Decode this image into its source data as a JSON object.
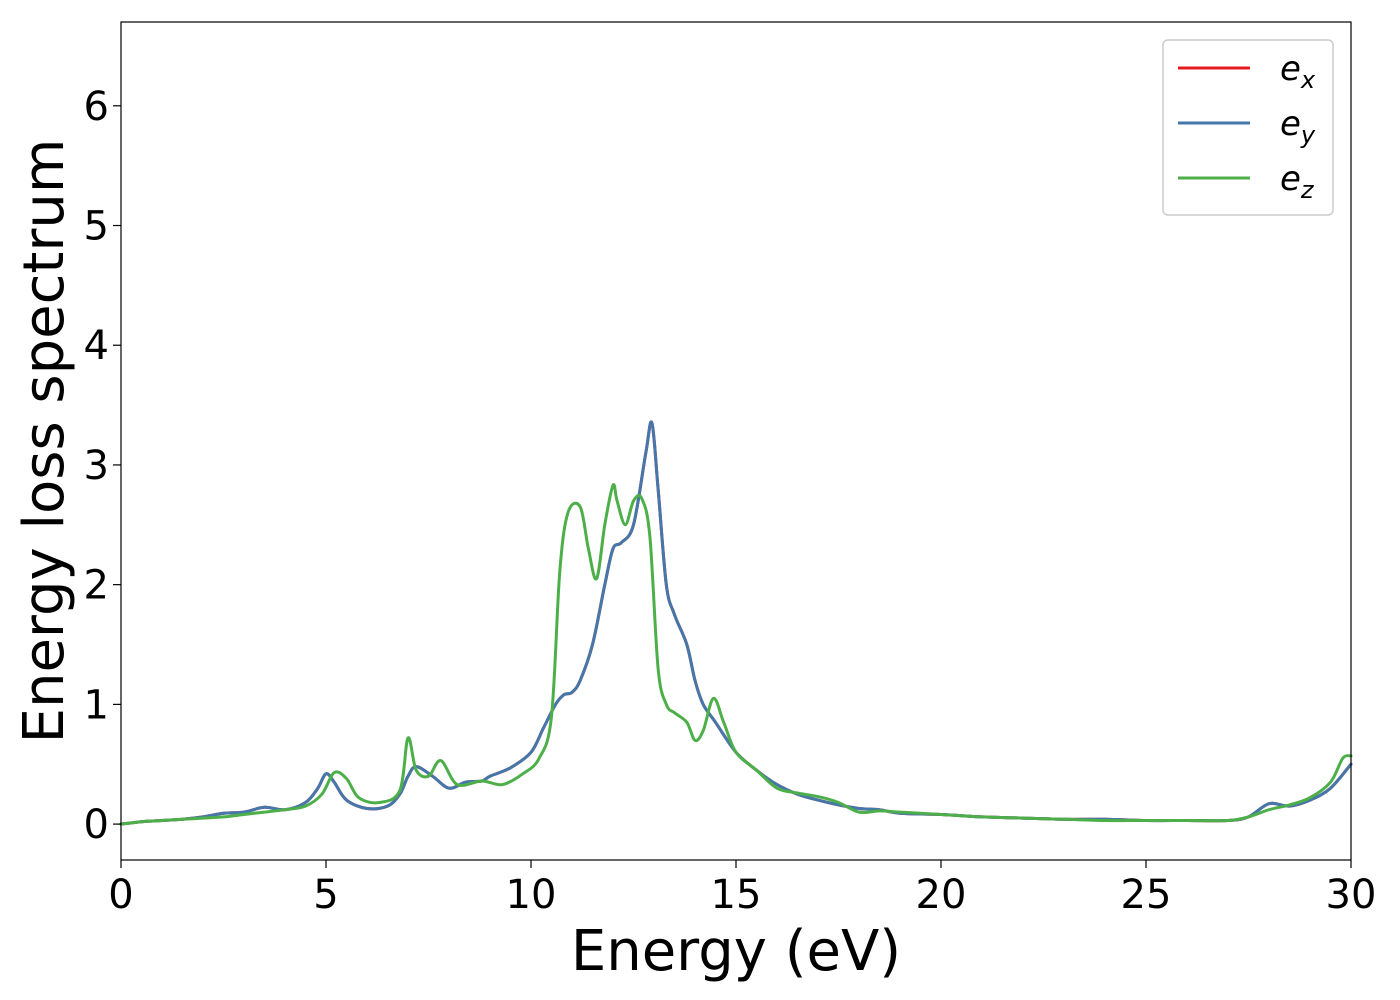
{
  "chart_data": {
    "type": "line",
    "title": "",
    "xlabel": "Energy (eV)",
    "ylabel": "Energy loss spectrum",
    "xlim": [
      0,
      30
    ],
    "ylim": [
      -0.3,
      6.7
    ],
    "xticks": [
      0,
      5,
      10,
      15,
      20,
      25,
      30
    ],
    "yticks": [
      0,
      1,
      2,
      3,
      4,
      5,
      6
    ],
    "grid": false,
    "legend_position": "top-right",
    "series": [
      {
        "name": "e_x",
        "label_base": "e",
        "label_sub": "x",
        "color": "#e41a1c",
        "x": [
          0,
          0.5,
          1,
          1.5,
          2,
          2.5,
          3,
          3.5,
          4,
          4.5,
          4.8,
          5,
          5.2,
          5.5,
          6,
          6.5,
          6.8,
          7,
          7.2,
          7.6,
          8,
          8.4,
          8.8,
          9,
          9.5,
          10,
          10.3,
          10.6,
          10.8,
          11,
          11.2,
          11.5,
          11.8,
          12,
          12.2,
          12.5,
          12.8,
          12.95,
          13.1,
          13.3,
          13.5,
          13.8,
          14,
          14.2,
          14.5,
          15,
          15.5,
          16,
          16.5,
          17,
          17.5,
          18,
          18.5,
          19,
          20,
          20.5,
          21,
          22,
          23,
          24,
          25,
          26,
          27,
          27.5,
          28,
          28.5,
          29,
          29.5,
          30
        ],
        "values": [
          0,
          0.02,
          0.03,
          0.04,
          0.06,
          0.09,
          0.1,
          0.14,
          0.12,
          0.18,
          0.3,
          0.42,
          0.35,
          0.2,
          0.13,
          0.15,
          0.25,
          0.4,
          0.48,
          0.4,
          0.3,
          0.35,
          0.36,
          0.4,
          0.47,
          0.6,
          0.8,
          1.0,
          1.08,
          1.1,
          1.2,
          1.5,
          2.0,
          2.3,
          2.35,
          2.5,
          3.1,
          3.35,
          2.8,
          2.0,
          1.75,
          1.5,
          1.2,
          1.0,
          0.85,
          0.6,
          0.45,
          0.33,
          0.25,
          0.2,
          0.16,
          0.13,
          0.12,
          0.09,
          0.08,
          0.07,
          0.06,
          0.05,
          0.04,
          0.04,
          0.03,
          0.03,
          0.03,
          0.06,
          0.17,
          0.15,
          0.2,
          0.3,
          0.5
        ]
      },
      {
        "name": "e_y",
        "label_base": "e",
        "label_sub": "y",
        "color": "#4477aa",
        "x": [
          0,
          0.5,
          1,
          1.5,
          2,
          2.5,
          3,
          3.5,
          4,
          4.5,
          4.8,
          5,
          5.2,
          5.5,
          6,
          6.5,
          6.8,
          7,
          7.2,
          7.6,
          8,
          8.4,
          8.8,
          9,
          9.5,
          10,
          10.3,
          10.6,
          10.8,
          11,
          11.2,
          11.5,
          11.8,
          12,
          12.2,
          12.5,
          12.8,
          12.95,
          13.1,
          13.3,
          13.5,
          13.8,
          14,
          14.2,
          14.5,
          15,
          15.5,
          16,
          16.5,
          17,
          17.5,
          18,
          18.5,
          19,
          20,
          20.5,
          21,
          22,
          23,
          24,
          25,
          26,
          27,
          27.5,
          28,
          28.5,
          29,
          29.5,
          30
        ],
        "values": [
          0,
          0.02,
          0.03,
          0.04,
          0.06,
          0.09,
          0.1,
          0.14,
          0.12,
          0.18,
          0.3,
          0.42,
          0.35,
          0.2,
          0.13,
          0.15,
          0.25,
          0.4,
          0.48,
          0.4,
          0.3,
          0.35,
          0.36,
          0.4,
          0.47,
          0.6,
          0.8,
          1.0,
          1.08,
          1.1,
          1.2,
          1.5,
          2.0,
          2.3,
          2.35,
          2.5,
          3.1,
          3.35,
          2.8,
          2.0,
          1.75,
          1.5,
          1.2,
          1.0,
          0.85,
          0.6,
          0.45,
          0.33,
          0.25,
          0.2,
          0.16,
          0.13,
          0.12,
          0.09,
          0.08,
          0.07,
          0.06,
          0.05,
          0.04,
          0.04,
          0.03,
          0.03,
          0.03,
          0.06,
          0.17,
          0.15,
          0.2,
          0.3,
          0.5
        ]
      },
      {
        "name": "e_z",
        "label_base": "e",
        "label_sub": "z",
        "color": "#4daf4a",
        "x": [
          0,
          0.5,
          1,
          1.5,
          2,
          2.5,
          3,
          3.5,
          4,
          4.5,
          4.9,
          5.2,
          5.5,
          5.8,
          6.3,
          6.8,
          7,
          7.2,
          7.5,
          7.8,
          8.2,
          8.8,
          9.3,
          9.8,
          10.2,
          10.5,
          10.7,
          10.9,
          11.2,
          11.4,
          11.6,
          11.8,
          12,
          12.1,
          12.3,
          12.5,
          12.7,
          12.9,
          13.1,
          13.3,
          13.5,
          13.8,
          14,
          14.2,
          14.45,
          14.7,
          15,
          15.5,
          16,
          16.5,
          17,
          17.5,
          18,
          18.5,
          19,
          20,
          20.5,
          21,
          22,
          23,
          24,
          25,
          26,
          27,
          27.5,
          28,
          28.5,
          29,
          29.5,
          29.8,
          30
        ],
        "values": [
          0,
          0.02,
          0.03,
          0.04,
          0.05,
          0.06,
          0.08,
          0.1,
          0.12,
          0.15,
          0.25,
          0.43,
          0.38,
          0.22,
          0.18,
          0.28,
          0.72,
          0.45,
          0.4,
          0.53,
          0.33,
          0.36,
          0.33,
          0.42,
          0.55,
          0.9,
          2.1,
          2.6,
          2.65,
          2.3,
          2.05,
          2.5,
          2.83,
          2.7,
          2.5,
          2.7,
          2.72,
          2.4,
          1.3,
          1.0,
          0.93,
          0.85,
          0.7,
          0.78,
          1.05,
          0.85,
          0.6,
          0.45,
          0.3,
          0.26,
          0.23,
          0.18,
          0.1,
          0.11,
          0.1,
          0.08,
          0.07,
          0.06,
          0.05,
          0.04,
          0.03,
          0.03,
          0.03,
          0.03,
          0.06,
          0.12,
          0.16,
          0.22,
          0.35,
          0.55,
          0.57
        ]
      }
    ]
  }
}
